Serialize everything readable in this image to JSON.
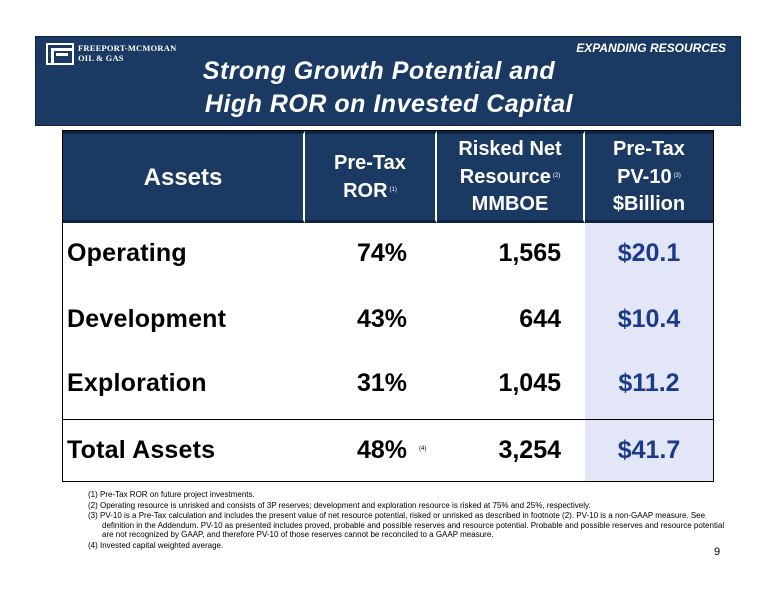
{
  "header": {
    "logo_line1": "FREEPORT-MCMORAN",
    "logo_line2": "OIL & GAS",
    "section_tag": "EXPANDING RESOURCES",
    "title_line1": "Strong Growth Potential and",
    "title_line2": "High ROR on Invested Capital"
  },
  "table": {
    "columns": {
      "assets": "Assets",
      "ror_line1": "Pre-Tax",
      "ror_line2": "ROR",
      "ror_note": "(1)",
      "res_line1": "Risked Net",
      "res_line2": "Resource",
      "res_note": "(2)",
      "res_line3": "MMBOE",
      "pv_line1": "Pre-Tax",
      "pv_line2": "PV-10",
      "pv_note": "(3)",
      "pv_line3": "$Billion"
    },
    "rows": [
      {
        "name": "Operating",
        "ror": "74%",
        "resource": "1,565",
        "pv": "$20.1"
      },
      {
        "name": "Development",
        "ror": "43%",
        "resource": "644",
        "pv": "$10.4"
      },
      {
        "name": "Exploration",
        "ror": "31%",
        "resource": "1,045",
        "pv": "$11.2"
      }
    ],
    "total": {
      "name": "Total Assets",
      "ror": "48%",
      "ror_note": "(4)",
      "resource": "3,254",
      "pv": "$41.7"
    }
  },
  "footnotes": [
    "(1) Pre-Tax ROR on future project investments.",
    "(2) Operating resource is unrisked and consists of 3P reserves; development and exploration resource is risked at 75% and 25%, respectively.",
    "(3) PV-10 is a Pre-Tax calculation and includes the present value of net resource potential, risked or unrisked as described in footnote (2). PV-10 is a non-GAAP measure. See definition in the Addendum. PV-10 as presented includes proved, probable and possible reserves and resource potential. Probable and possible reserves and resource potential are not recognized by GAAP, and therefore PV-10 of those reserves cannot be reconciled to a GAAP measure.",
    "(4) Invested capital weighted average."
  ],
  "page_number": "9",
  "colors": {
    "navy": "#1a3a63",
    "pv_highlight": "#e2e6f7",
    "pv_text": "#1a3a8c"
  }
}
